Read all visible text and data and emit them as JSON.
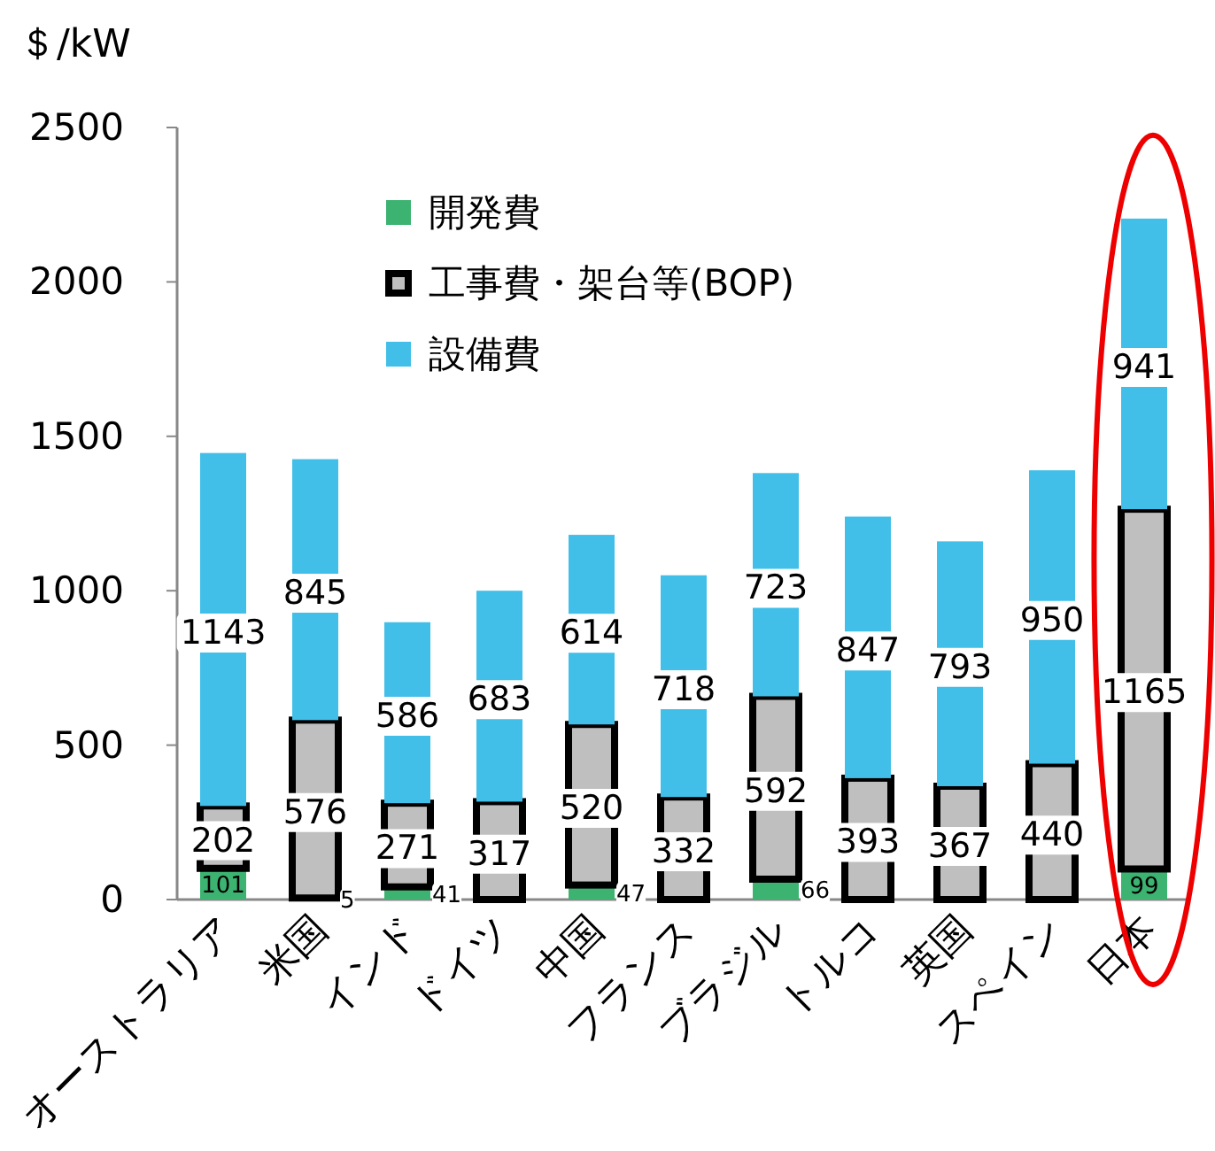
{
  "chart_data": {
    "type": "bar",
    "stacked": true,
    "ylabel": "＄/kW",
    "categories": [
      "オーストラリア",
      "米国",
      "インド",
      "ドイツ",
      "中国",
      "フランス",
      "ブラジル",
      "トルコ",
      "英国",
      "スペイン",
      "日本"
    ],
    "series": [
      {
        "name": "開発費",
        "color": "#3cb371",
        "values": [
          101,
          5,
          41,
          0,
          47,
          0,
          66,
          0,
          0,
          0,
          99
        ],
        "value_labels": [
          "101",
          "5",
          "41",
          null,
          "47",
          null,
          "66",
          null,
          null,
          null,
          "99"
        ]
      },
      {
        "name": "工事費・架台等(BOP)",
        "color": "#bfbfbf",
        "values": [
          202,
          576,
          271,
          317,
          520,
          332,
          592,
          393,
          367,
          440,
          1165
        ],
        "value_labels": [
          "202",
          "576",
          "271",
          "317",
          "520",
          "332",
          "592",
          "393",
          "367",
          "440",
          "1165"
        ]
      },
      {
        "name": "設備費",
        "color": "#41bfe8",
        "values": [
          1143,
          845,
          586,
          683,
          614,
          718,
          723,
          847,
          793,
          950,
          941
        ],
        "value_labels": [
          "1143",
          "845",
          "586",
          "683",
          "614",
          "718",
          "723",
          "847",
          "793",
          "950",
          "941"
        ]
      }
    ],
    "ylim": [
      0,
      2500
    ],
    "yticks": [
      0,
      500,
      1000,
      1500,
      2000,
      2500
    ],
    "grid": false,
    "legend": "top left"
  }
}
